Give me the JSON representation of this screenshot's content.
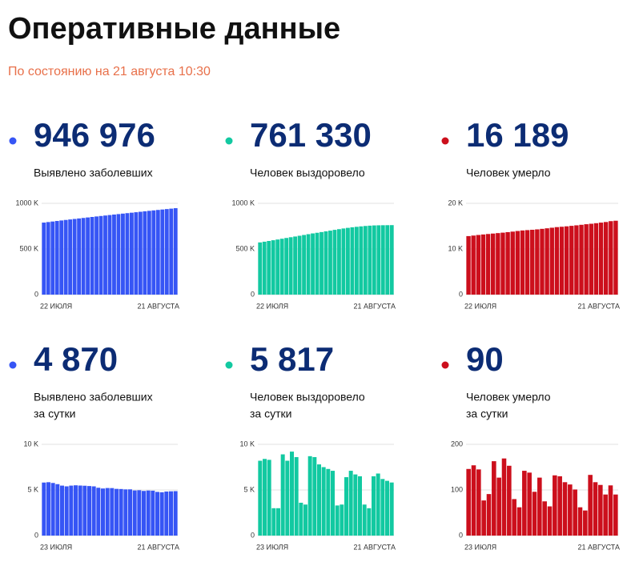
{
  "header": {
    "title": "Оперативные данные",
    "subtitle": "По состоянию на 21 августа 10:30"
  },
  "chart_data": [
    {
      "type": "bar",
      "headline": "946 976",
      "label": [
        "Выявлено заболевших"
      ],
      "color": "#3655f5",
      "categories": [
        "22 ИЮЛЯ",
        null,
        null,
        null,
        null,
        null,
        null,
        null,
        null,
        null,
        null,
        null,
        null,
        null,
        null,
        null,
        null,
        null,
        null,
        null,
        null,
        null,
        null,
        null,
        null,
        null,
        null,
        null,
        null,
        null,
        "21 АВГУСТА"
      ],
      "values": [
        789190,
        795038,
        800849,
        806720,
        812485,
        818120,
        823515,
        828990,
        834499,
        839981,
        845443,
        850870,
        856264,
        861423,
        866627,
        871894,
        877135,
        882347,
        887536,
        892654,
        897599,
        902701,
        907758,
        912823,
        917884,
        922853,
        927745,
        932493,
        937321,
        942106,
        946976
      ],
      "ylim": [
        0,
        1000000
      ],
      "yticks": [
        0,
        {
          "value": 500000,
          "label": "500 K"
        },
        {
          "value": 1000000,
          "label": "1000 K"
        }
      ],
      "grid": true
    },
    {
      "type": "bar",
      "headline": "761 330",
      "label": [
        "Человек выздоровело"
      ],
      "color": "#12c9a1",
      "categories": [
        "22 ИЮЛЯ",
        null,
        null,
        null,
        null,
        null,
        null,
        null,
        null,
        null,
        null,
        null,
        null,
        null,
        null,
        null,
        null,
        null,
        null,
        null,
        null,
        null,
        null,
        null,
        null,
        null,
        null,
        null,
        null,
        null,
        "21 АВГУСТА"
      ],
      "values": [
        572053,
        579726,
        587728,
        595916,
        603856,
        612405,
        620673,
        628848,
        636612,
        645020,
        653425,
        662154,
        670557,
        677597,
        685386,
        693422,
        700997,
        709625,
        717231,
        724709,
        731444,
        737865,
        742930,
        747678,
        752094,
        755513,
        758100,
        759400,
        760200,
        760800,
        761330
      ],
      "ylim": [
        0,
        1000000
      ],
      "yticks": [
        0,
        {
          "value": 500000,
          "label": "500 K"
        },
        {
          "value": 1000000,
          "label": "1000 K"
        }
      ],
      "grid": true
    },
    {
      "type": "bar",
      "headline": "16 189",
      "label": [
        "Человек умерло"
      ],
      "color": "#cc0f1c",
      "categories": [
        "22 ИЮЛЯ",
        null,
        null,
        null,
        null,
        null,
        null,
        null,
        null,
        null,
        null,
        null,
        null,
        null,
        null,
        null,
        null,
        null,
        null,
        null,
        null,
        null,
        null,
        null,
        null,
        null,
        null,
        null,
        null,
        null,
        "21 АВГУСТА"
      ],
      "values": [
        12823,
        12941,
        13069,
        13178,
        13282,
        13381,
        13480,
        13578,
        13691,
        13807,
        13941,
        14058,
        14135,
        14208,
        14299,
        14413,
        14532,
        14658,
        14793,
        14872,
        14964,
        15071,
        15183,
        15299,
        15426,
        15528,
        15650,
        15780,
        15910,
        16099,
        16189
      ],
      "ylim": [
        0,
        20000
      ],
      "yticks": [
        0,
        {
          "value": 10000,
          "label": "10 K"
        },
        {
          "value": 20000,
          "label": "20 K"
        }
      ],
      "grid": true
    },
    {
      "type": "bar",
      "headline": "4 870",
      "label": [
        "Выявлено заболевших",
        "за сутки"
      ],
      "color": "#3655f5",
      "categories": [
        "23 ИЮЛЯ",
        null,
        null,
        null,
        null,
        null,
        null,
        null,
        null,
        null,
        null,
        null,
        null,
        null,
        null,
        null,
        null,
        null,
        null,
        null,
        null,
        null,
        null,
        null,
        null,
        null,
        null,
        null,
        null,
        "21 АВГУСТА"
      ],
      "values": [
        5811,
        5848,
        5765,
        5635,
        5475,
        5395,
        5475,
        5509,
        5482,
        5462,
        5427,
        5394,
        5241,
        5159,
        5212,
        5204,
        5118,
        5102,
        5061,
        5065,
        4945,
        4969,
        4892,
        4939,
        4921,
        4785,
        4748,
        4828,
        4852,
        4870
      ],
      "ylim": [
        0,
        10000
      ],
      "yticks": [
        0,
        {
          "value": 5000,
          "label": "5 K"
        },
        {
          "value": 10000,
          "label": "10 K"
        }
      ],
      "grid": true
    },
    {
      "type": "bar",
      "headline": "5 817",
      "label": [
        "Человек выздоровело",
        "за сутки"
      ],
      "color": "#12c9a1",
      "categories": [
        "23 ИЮЛЯ",
        null,
        null,
        null,
        null,
        null,
        null,
        null,
        null,
        null,
        null,
        null,
        null,
        null,
        null,
        null,
        null,
        null,
        null,
        null,
        null,
        null,
        null,
        null,
        null,
        null,
        null,
        null,
        null,
        "21 АВГУСТА"
      ],
      "values": [
        8200,
        8400,
        8300,
        3000,
        3000,
        8900,
        8200,
        9200,
        8600,
        3600,
        3400,
        8700,
        8600,
        7800,
        7500,
        7300,
        7100,
        3300,
        3400,
        6400,
        7100,
        6700,
        6500,
        3400,
        3000,
        6500,
        6800,
        6200,
        6000,
        5817
      ],
      "ylim": [
        0,
        10000
      ],
      "yticks": [
        0,
        {
          "value": 5000,
          "label": "5 K"
        },
        {
          "value": 10000,
          "label": "10 K"
        }
      ],
      "grid": true
    },
    {
      "type": "bar",
      "headline": "90",
      "label": [
        "Человек умерло",
        "за сутки"
      ],
      "color": "#cc0f1c",
      "categories": [
        "23 ИЮЛЯ",
        null,
        null,
        null,
        null,
        null,
        null,
        null,
        null,
        null,
        null,
        null,
        null,
        null,
        null,
        null,
        null,
        null,
        null,
        null,
        null,
        null,
        null,
        null,
        null,
        null,
        null,
        null,
        null,
        "21 АВГУСТА"
      ],
      "values": [
        146,
        154,
        145,
        77,
        91,
        163,
        127,
        169,
        153,
        80,
        62,
        142,
        138,
        96,
        127,
        75,
        64,
        132,
        130,
        117,
        112,
        101,
        62,
        55,
        133,
        117,
        111,
        90,
        110,
        90
      ],
      "ylim": [
        0,
        200
      ],
      "yticks": [
        0,
        100,
        200
      ],
      "grid": true
    }
  ]
}
